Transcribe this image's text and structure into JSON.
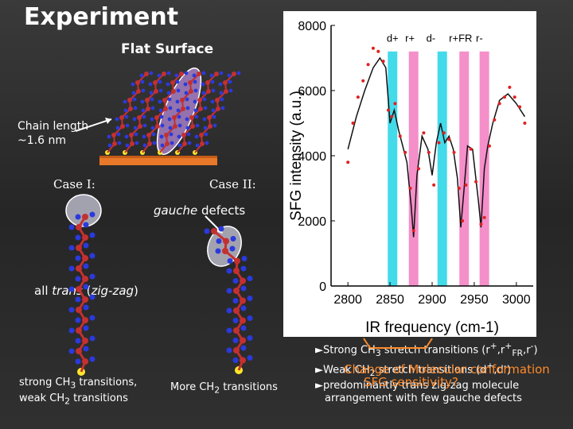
{
  "slide": {
    "title": "Experiment",
    "flat_surface": "Flat Surface",
    "chain_length_1": "Chain length",
    "chain_length_2": "~1.6 nm",
    "case1": "Case I:",
    "case2": "Case II:",
    "gauche_em": "gauche",
    "gauche_rest": " defects",
    "all_trans_pre": "all ",
    "all_trans_em": "trans",
    "all_trans_paren": " (",
    "all_trans_em2": "zig-zag",
    "all_trans_close": ")",
    "strong_text_1": "strong CH",
    "strong_sub_1": "3",
    "strong_text_2": " transitions,",
    "strong_text_3": "weak CH",
    "strong_sub_2": "2",
    "strong_text_4": " transitions",
    "more_text": "More CH",
    "more_sub": "2",
    "more_text_2": " transitions",
    "bullets": [
      "►Strong CH3 stretch transitions (r+,r+FR,r-)",
      "►Weak CH2 stretch transitions (d+,d-)",
      "►predominantly trans zig-zag molecule",
      "arrangement with few gauche defects"
    ],
    "overlay_1": "Change of Molecular conformation",
    "overlay_2": "SFG sensitivity?",
    "colors": {
      "cyan_band": "#22d3e6",
      "pink_band": "#f27bc0",
      "overlay": "#ff8a2a"
    }
  },
  "chart_data": {
    "type": "line",
    "title": "",
    "xlabel": "IR frequency (cm-1)",
    "ylabel": "SFG intensity (a.u.)",
    "xlim": [
      2780,
      3020
    ],
    "ylim": [
      0,
      8000
    ],
    "x_ticks": [
      2800,
      2850,
      2900,
      2950,
      3000
    ],
    "y_ticks": [
      0,
      2000,
      4000,
      6000,
      8000
    ],
    "band_labels": [
      "d+",
      "r+",
      "d-",
      "r+FR",
      "r-"
    ],
    "bands": [
      {
        "label": "d+",
        "center": 2853,
        "color": "cyan"
      },
      {
        "label": "r+",
        "center": 2878,
        "color": "pink"
      },
      {
        "label": "d-",
        "center": 2912,
        "color": "cyan"
      },
      {
        "label": "r+FR",
        "center": 2938,
        "color": "pink"
      },
      {
        "label": "r-",
        "center": 2962,
        "color": "pink"
      }
    ],
    "series": [
      {
        "style": "fit-line",
        "x": [
          2800,
          2810,
          2820,
          2830,
          2838,
          2845,
          2850,
          2855,
          2860,
          2865,
          2870,
          2875,
          2878,
          2882,
          2888,
          2895,
          2900,
          2905,
          2910,
          2915,
          2920,
          2925,
          2930,
          2934,
          2938,
          2942,
          2948,
          2955,
          2958,
          2962,
          2966,
          2972,
          2980,
          2990,
          3000,
          3010
        ],
        "y": [
          4200,
          5200,
          6000,
          6700,
          7000,
          6700,
          5000,
          5400,
          4800,
          4300,
          3800,
          2500,
          1500,
          3400,
          4600,
          4200,
          3400,
          4400,
          5000,
          4400,
          4600,
          4200,
          3300,
          1800,
          3000,
          4300,
          4200,
          2600,
          1800,
          3600,
          4300,
          5000,
          5700,
          5900,
          5600,
          5200
        ]
      },
      {
        "style": "data-points",
        "x": [
          2800,
          2806,
          2812,
          2818,
          2824,
          2830,
          2836,
          2842,
          2848,
          2852,
          2856,
          2862,
          2868,
          2874,
          2878,
          2884,
          2890,
          2896,
          2902,
          2908,
          2914,
          2920,
          2926,
          2932,
          2936,
          2940,
          2946,
          2952,
          2958,
          2962,
          2968,
          2974,
          2980,
          2986,
          2992,
          2998,
          3004,
          3010
        ],
        "y": [
          3800,
          5000,
          5800,
          6300,
          6800,
          7300,
          7200,
          6900,
          5400,
          5200,
          5600,
          4600,
          4100,
          3000,
          1700,
          3600,
          4700,
          4100,
          3100,
          4400,
          4700,
          4500,
          4100,
          3000,
          2000,
          3100,
          4200,
          3200,
          1900,
          2100,
          4300,
          5100,
          5600,
          5800,
          6100,
          5800,
          5500,
          5000
        ]
      }
    ]
  }
}
